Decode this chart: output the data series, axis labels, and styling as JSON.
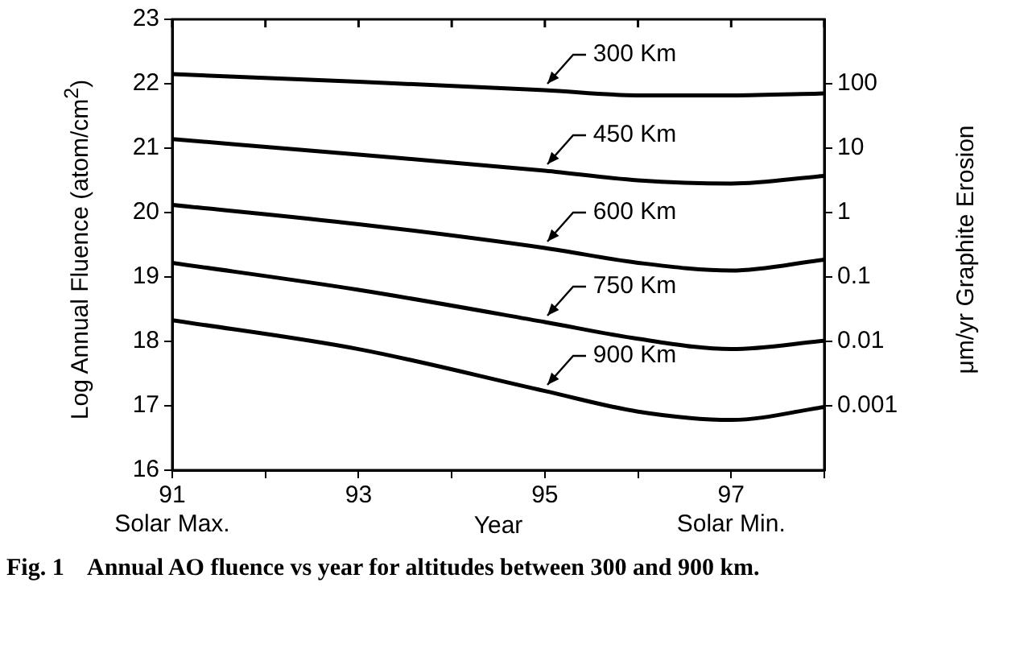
{
  "chart_data": {
    "type": "line",
    "xlabel": "Year",
    "ylabel": "Log Annual Fluence (atom/cm$^{2}$)",
    "y2label": "μm/yr Graphite Erosion",
    "xlim": [
      91,
      98
    ],
    "xticks": [
      {
        "value": 91,
        "label": "91\nSolar Max."
      },
      {
        "value": 92,
        "label": null
      },
      93,
      {
        "value": 94,
        "label": null
      },
      95,
      {
        "value": 96,
        "label": null
      },
      {
        "value": 97,
        "label": "97\nSolar Min."
      },
      {
        "value": 98,
        "label": null
      }
    ],
    "ylim": [
      16,
      23
    ],
    "yticks": [
      16,
      17,
      18,
      19,
      20,
      21,
      22,
      23
    ],
    "y2lim": [
      0.0001,
      1000
    ],
    "y2ticks": [
      0.001,
      0.01,
      0.1,
      1,
      10,
      100
    ],
    "log": "y2",
    "x": [
      91,
      93,
      95,
      96,
      97,
      98
    ],
    "series": [
      {
        "name": "300 Km",
        "color": "#000000",
        "values": [
          22.15,
          22.03,
          21.9,
          21.82,
          21.82,
          21.85
        ]
      },
      {
        "name": "450 Km",
        "color": "#000000",
        "values": [
          21.14,
          20.9,
          20.65,
          20.5,
          20.45,
          20.57
        ]
      },
      {
        "name": "600 Km",
        "color": "#000000",
        "values": [
          20.12,
          19.82,
          19.45,
          19.22,
          19.1,
          19.27
        ]
      },
      {
        "name": "750 Km",
        "color": "#000000",
        "values": [
          19.22,
          18.8,
          18.3,
          18.04,
          17.88,
          18.01
        ]
      },
      {
        "name": "900 Km",
        "color": "#000000",
        "values": [
          18.33,
          17.88,
          17.23,
          16.91,
          16.78,
          16.98
        ]
      }
    ],
    "annotations": [
      "Fig. 1    Annual AO fluence vs year for altitudes between 300 and 900 km."
    ],
    "grid": false,
    "legend": "right",
    "marker": "none",
    "line_style": "solid"
  }
}
